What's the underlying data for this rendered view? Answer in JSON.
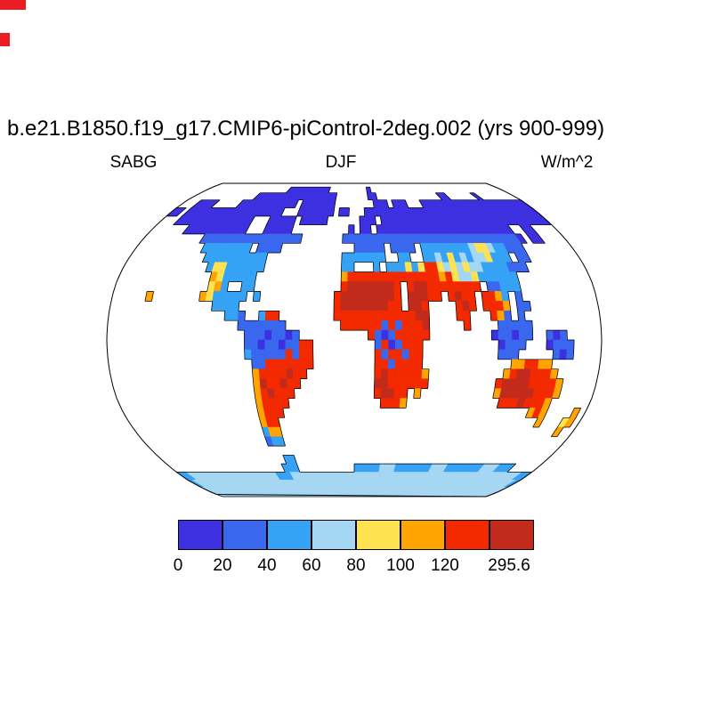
{
  "title": "b.e21.B1850.f19_g17.CMIP6-piControl-2deg.002 (yrs 900-999)",
  "labels": {
    "variable": "SABG",
    "season": "DJF",
    "units": "W/m^2"
  },
  "colors": {
    "background": "#ffffff",
    "outline": "#000000",
    "artifact_red": "#ec1c24"
  },
  "colorbar": {
    "colors": [
      "#3c30e0",
      "#3968ef",
      "#35a2f5",
      "#a6d7f2",
      "#ffe24f",
      "#ffa400",
      "#f32a00",
      "#c22a1c"
    ],
    "tick_labels": [
      "0",
      "20",
      "40",
      "60",
      "80",
      "100",
      "120"
    ],
    "max_label": "295.6"
  },
  "chart_data": {
    "type": "heatmap",
    "title": "b.e21.B1850.f19_g17.CMIP6-piControl-2deg.002 (yrs 900-999)",
    "variable": "SABG",
    "season": "DJF",
    "units": "W/m^2",
    "projection": "robinson",
    "legend_position": "bottom",
    "levels": [
      0,
      20,
      40,
      60,
      80,
      100,
      120
    ],
    "max_value": 295.6,
    "grid": {
      "encoding": "rle",
      "cols": 72,
      "rows_count": 36,
      "lon_range": [
        -180,
        180
      ],
      "lat_range": [
        90,
        -90
      ],
      "color_keys": "ibcpyord",
      "key_bins": {
        "i": "0-20",
        "b": "20-40",
        "c": "40-60",
        "p": "60-80",
        "y": "80-100",
        "o": "100-120",
        "r": "120-200",
        "d": "200-295.6"
      },
      "rows": [
        "72.",
        "20.10i9.1i32.",
        "14.18i7.2i14.2i6.1i8.",
        "3.4i5.12i1.7i8.3i1.3i3.22i",
        "2i1.19i3.7i1.2i3.34i",
        "3.14i3.5i1.5i6.3i1.31i",
        "6.11i3.5i10.1i1.2i1.24i2.2i4.",
        "10.17b7.30b1i1.2i4.",
        "11.8c1.4b12.5b1.4b1.8c1p2y1p2c3b8.",
        "12.10c12.7c2.2c2.2c1p1c1y1c1p1c2p1y3c1.2b8.",
        "13.1c2y6c12.2c3.1c1.3c1y1c1y2r1y1p1y1p1y2p4c3b9.",
        "14.1o1y5c13.1o14r1o1r1y2p1y6c11.",
        "14.1y1o1c2.2c13.1r7d1r1.1r2d8r1.2b3c11.",
        "5.1o7.1o1y5c1.1c11.1r8d1r1.3d2r1.1r1d2r1.2r1o1c1.1b11.",
        "15.4c14.1r7d2r1.2d1r4.1r1d1r1.3r1o1.2b10.",
        "17.2c1b2.1c2r8.12r2d4.2r3.1r1o1b1.1b11.",
        "19.7b8.6r1b1r1b3r1d5.1r4.5b10.",
        "20.3b1i2b1i1b10.1r1b1i1b5r9.1i2b1i2b2.1b1i1b5.",
        "20.2b1i2b1i2b2r9.1b1r1i1b3r11.1i3b3.1i3b4.",
        "20.1c5b1r1b2r9.1r1b2r1b2r11.3b5.1b1i1b4.",
        "21.2b7r9.2r1b4r13.2o2r2o7.",
        "21.1o4r1d2r10.1r1d5r1o11.1o1r2d3r1o6.",
        "21.1o1d2r1d2r11.2d6r10.1r4d4r1o5.",
        "21.1o1r1d3r12.1r2d2r1.1o11.1o5d3r1o5.",
        "21.1o4r14.3r1o14.3r1d3r1o6.",
        "21.1o3r38.1o1r1o4.1o1.",
        "21.1o2r41.1o3.1y1o1.",
        "21.1c2o45.1o2.",
        "21.1b2c48.",
        "72.",
        "23.2c47.",
        "22.3c11.5c3p7c3p7c3p3c5.",
        "2c18p3c47p2c",
        "1c70p1c",
        "72p",
        "72p"
      ]
    }
  }
}
